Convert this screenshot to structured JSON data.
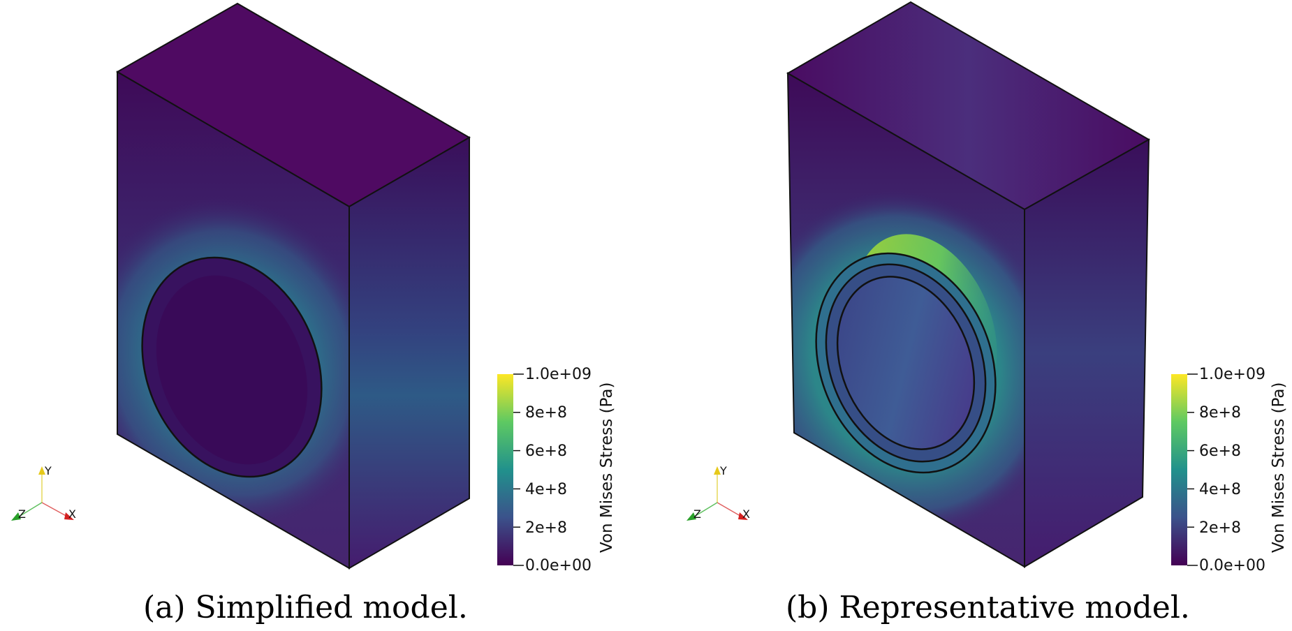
{
  "panels": [
    {
      "id": "a",
      "caption": "(a) Simplified model.",
      "colorbar": {
        "title": "Von Mises Stress (Pa)",
        "ticks": [
          "1.0e+09",
          "8e+8",
          "6e+8",
          "4e+8",
          "2e+8",
          "0.0e+00"
        ],
        "range": [
          0,
          1000000000
        ],
        "colormap": [
          "#440154",
          "#3b528b",
          "#21918c",
          "#5ec962",
          "#fde725"
        ]
      },
      "axes_triad": {
        "y": "Y",
        "z": "Z",
        "x": "X"
      }
    },
    {
      "id": "b",
      "caption": "(b) Representative model.",
      "colorbar": {
        "title": "Von Mises Stress (Pa)",
        "ticks": [
          "1.0e+09",
          "8e+8",
          "6e+8",
          "4e+8",
          "2e+8",
          "0.0e+00"
        ],
        "range": [
          0,
          1000000000
        ],
        "colormap": [
          "#440154",
          "#3b528b",
          "#21918c",
          "#5ec962",
          "#fde725"
        ]
      },
      "axes_triad": {
        "y": "Y",
        "z": "Z",
        "x": "X"
      }
    }
  ]
}
